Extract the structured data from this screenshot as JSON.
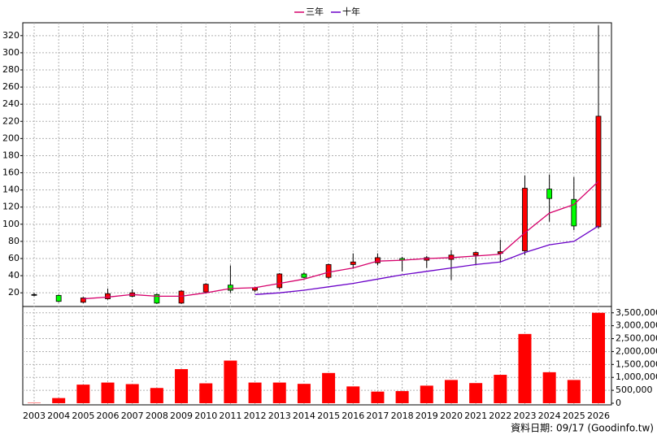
{
  "chart_data": {
    "type": "candlestick",
    "categories": [
      "2003",
      "2004",
      "2005",
      "2006",
      "2007",
      "2008",
      "2009",
      "2010",
      "2011",
      "2012",
      "2013",
      "2014",
      "2015",
      "2016",
      "2017",
      "2018",
      "2019",
      "2020",
      "2021",
      "2022",
      "2023",
      "2024",
      "2025",
      "2026"
    ],
    "open": [
      18,
      17,
      9,
      13,
      16,
      18,
      8,
      21,
      29,
      23,
      26,
      42,
      38,
      53,
      55,
      60,
      58,
      59,
      64,
      66,
      69,
      141,
      129,
      97
    ],
    "high": [
      20,
      18,
      15,
      25,
      24,
      19,
      23,
      31,
      52,
      27,
      43,
      44,
      54,
      66,
      66,
      62,
      63,
      70,
      68,
      82,
      157,
      158,
      155,
      332
    ],
    "low": [
      16,
      9,
      8,
      12,
      15,
      7,
      7,
      20,
      20,
      21,
      24,
      37,
      36,
      48,
      52,
      45,
      49,
      35,
      52,
      55,
      64,
      103,
      93,
      95
    ],
    "close": [
      18,
      10,
      14,
      19,
      20,
      8,
      22,
      30,
      23,
      26,
      42,
      38,
      53,
      56,
      61,
      58,
      61,
      64,
      67,
      68,
      142,
      130,
      98,
      226
    ],
    "up_color": "#ff0000",
    "down_color": "#00ff00",
    "series": [
      {
        "name": "三年",
        "color": "#d6006b",
        "values": [
          null,
          null,
          13,
          15,
          18,
          16,
          16,
          20,
          25,
          26,
          31,
          36,
          44,
          49,
          57,
          58,
          60,
          61,
          63,
          65,
          90,
          113,
          123,
          150
        ]
      },
      {
        "name": "十年",
        "color": "#6a00c8",
        "values": [
          null,
          null,
          null,
          null,
          null,
          null,
          null,
          null,
          null,
          18,
          20,
          23,
          27,
          31,
          36,
          41,
          45,
          49,
          53,
          56,
          67,
          76,
          80,
          98
        ]
      }
    ],
    "ylim": [
      5,
      335
    ],
    "yticks": [
      20,
      40,
      60,
      80,
      100,
      120,
      140,
      160,
      180,
      200,
      220,
      240,
      260,
      280,
      300,
      320
    ],
    "grid": true,
    "legend": "top",
    "volume": {
      "type": "bar",
      "color": "#ff0000",
      "values": [
        15000,
        200000,
        720000,
        800000,
        740000,
        590000,
        1320000,
        770000,
        1650000,
        800000,
        800000,
        750000,
        1170000,
        650000,
        450000,
        470000,
        680000,
        900000,
        780000,
        1100000,
        2680000,
        1200000,
        900000,
        3500000
      ],
      "ylim": [
        0,
        3650000
      ],
      "yticks": [
        0,
        {
          "value": 500000,
          "label": "500,000"
        },
        {
          "value": 1000000,
          "label": "1,000,000"
        },
        {
          "value": 1500000,
          "label": "1,500,000"
        },
        {
          "value": 2000000,
          "label": "2,000,000"
        },
        {
          "value": 2500000,
          "label": "2,500,000"
        },
        {
          "value": 3000000,
          "label": "3,000,000"
        },
        {
          "value": 3500000,
          "label": "3,500,000"
        }
      ]
    },
    "note": "資料日期: 09/17 (Goodinfo.tw)"
  }
}
